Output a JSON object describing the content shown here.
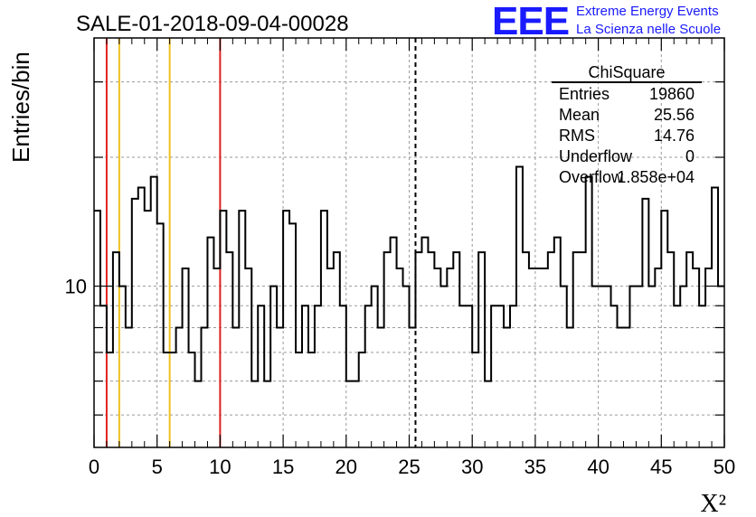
{
  "brand": {
    "logo_text": "EEE",
    "line1": "Extreme Energy Events",
    "line2": "La Scienza nelle Scuole"
  },
  "stats": {
    "title": "ChiSquare",
    "rows": [
      {
        "label": "Entries",
        "value": "19860"
      },
      {
        "label": "Mean",
        "value": "25.56"
      },
      {
        "label": "RMS",
        "value": "14.76"
      },
      {
        "label": "Underflow",
        "value": "0"
      },
      {
        "label": "Overflow",
        "value": "1.858e+04"
      }
    ]
  },
  "chart_data": {
    "type": "histogram",
    "title": "SALE-01-2018-09-04-00028",
    "xlabel": "X²",
    "ylabel": "Entries/bin",
    "xlim": [
      0,
      50
    ],
    "ylim": [
      4.2,
      38
    ],
    "yscale": "log",
    "grid": true,
    "x_ticks": [
      0,
      5,
      10,
      15,
      20,
      25,
      30,
      35,
      40,
      45,
      50
    ],
    "y_tick_labels": [
      {
        "value": 10,
        "label": "10"
      }
    ],
    "bin_width": 0.5,
    "bin_counts": [
      15,
      9,
      7,
      12,
      10,
      8,
      16,
      17,
      15,
      18,
      14,
      7,
      7,
      8,
      11,
      7,
      6,
      8,
      13,
      11,
      15,
      12,
      8,
      15,
      11,
      6,
      9,
      6,
      10,
      8,
      15,
      14,
      7,
      9,
      7,
      9,
      15,
      11,
      12,
      9,
      6,
      6,
      7,
      9,
      10,
      8,
      12,
      13,
      11,
      10,
      8,
      12,
      13,
      12,
      11,
      10,
      11,
      12,
      9,
      9,
      7,
      12,
      6,
      9,
      9,
      8,
      9,
      19,
      12,
      11,
      11,
      11,
      12,
      13,
      10,
      8,
      12,
      12,
      18,
      10,
      10,
      10,
      9,
      8,
      8,
      10,
      10,
      16,
      10,
      11,
      15,
      12,
      9,
      10,
      12,
      11,
      9,
      11,
      17,
      10
    ],
    "vertical_markers": [
      {
        "x": 1.0,
        "color": "#e02020",
        "style": "solid"
      },
      {
        "x": 2.0,
        "color": "#f0c020",
        "style": "solid"
      },
      {
        "x": 6.0,
        "color": "#f0c020",
        "style": "solid"
      },
      {
        "x": 10.0,
        "color": "#e02020",
        "style": "solid"
      },
      {
        "x": 25.5,
        "color": "#000000",
        "style": "dashed"
      }
    ]
  }
}
